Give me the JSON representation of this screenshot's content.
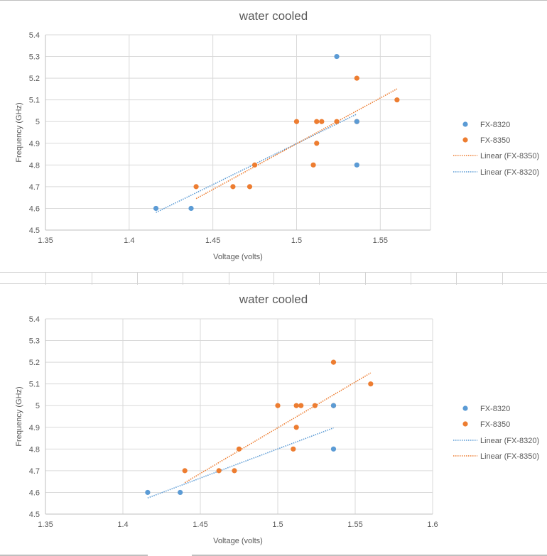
{
  "chart_data": [
    {
      "type": "scatter",
      "title": "water cooled",
      "xlabel": "Voltage (volts)",
      "ylabel": "Frequency (GHz)",
      "xlim": [
        1.35,
        1.58
      ],
      "ylim": [
        4.5,
        5.4
      ],
      "xticks": [
        "1.35",
        "1.4",
        "1.45",
        "1.5",
        "1.55"
      ],
      "yticks": [
        "4.5",
        "4.6",
        "4.7",
        "4.8",
        "4.9",
        "5",
        "5.1",
        "5.2",
        "5.3",
        "5.4"
      ],
      "grid": true,
      "legend_position": "right",
      "series": [
        {
          "name": "FX-8320",
          "color": "#5b9bd5",
          "x": [
            1.416,
            1.437,
            1.524,
            1.536,
            1.536
          ],
          "y": [
            4.6,
            4.6,
            5.3,
            4.8,
            5.0
          ]
        },
        {
          "name": "FX-8350",
          "color": "#ed7d31",
          "x": [
            1.44,
            1.462,
            1.472,
            1.475,
            1.5,
            1.51,
            1.512,
            1.512,
            1.515,
            1.524,
            1.536,
            1.536,
            1.56
          ],
          "y": [
            4.7,
            4.7,
            4.7,
            4.8,
            5.0,
            4.8,
            4.9,
            5.0,
            5.0,
            5.0,
            5.0,
            5.2,
            5.1
          ]
        }
      ],
      "legend": [
        {
          "label": "FX-8320",
          "kind": "marker",
          "series": 0
        },
        {
          "label": "FX-8350",
          "kind": "marker",
          "series": 1
        },
        {
          "label": "Linear (FX-8350)",
          "kind": "trend",
          "series": 1
        },
        {
          "label": "Linear (FX-8320)",
          "kind": "trend",
          "series": 0
        }
      ]
    },
    {
      "type": "scatter",
      "title": "water cooled",
      "xlabel": "Voltage (volts)",
      "ylabel": "Frequency (GHz)",
      "xlim": [
        1.35,
        1.6
      ],
      "ylim": [
        4.5,
        5.4
      ],
      "xticks": [
        "1.35",
        "1.4",
        "1.45",
        "1.5",
        "1.55",
        "1.6"
      ],
      "yticks": [
        "4.5",
        "4.6",
        "4.7",
        "4.8",
        "4.9",
        "5",
        "5.1",
        "5.2",
        "5.3",
        "5.4"
      ],
      "grid": true,
      "legend_position": "right",
      "series": [
        {
          "name": "FX-8320",
          "color": "#5b9bd5",
          "x": [
            1.416,
            1.437,
            1.536,
            1.536
          ],
          "y": [
            4.6,
            4.6,
            4.8,
            5.0
          ]
        },
        {
          "name": "FX-8350",
          "color": "#ed7d31",
          "x": [
            1.44,
            1.462,
            1.472,
            1.475,
            1.5,
            1.51,
            1.512,
            1.512,
            1.515,
            1.524,
            1.536,
            1.536,
            1.56
          ],
          "y": [
            4.7,
            4.7,
            4.7,
            4.8,
            5.0,
            4.8,
            4.9,
            5.0,
            5.0,
            5.0,
            5.0,
            5.2,
            5.1
          ]
        }
      ],
      "legend": [
        {
          "label": "FX-8320",
          "kind": "marker",
          "series": 0
        },
        {
          "label": "FX-8350",
          "kind": "marker",
          "series": 1
        },
        {
          "label": "Linear (FX-8320)",
          "kind": "trend",
          "series": 0
        },
        {
          "label": "Linear (FX-8350)",
          "kind": "trend",
          "series": 1
        }
      ]
    }
  ]
}
